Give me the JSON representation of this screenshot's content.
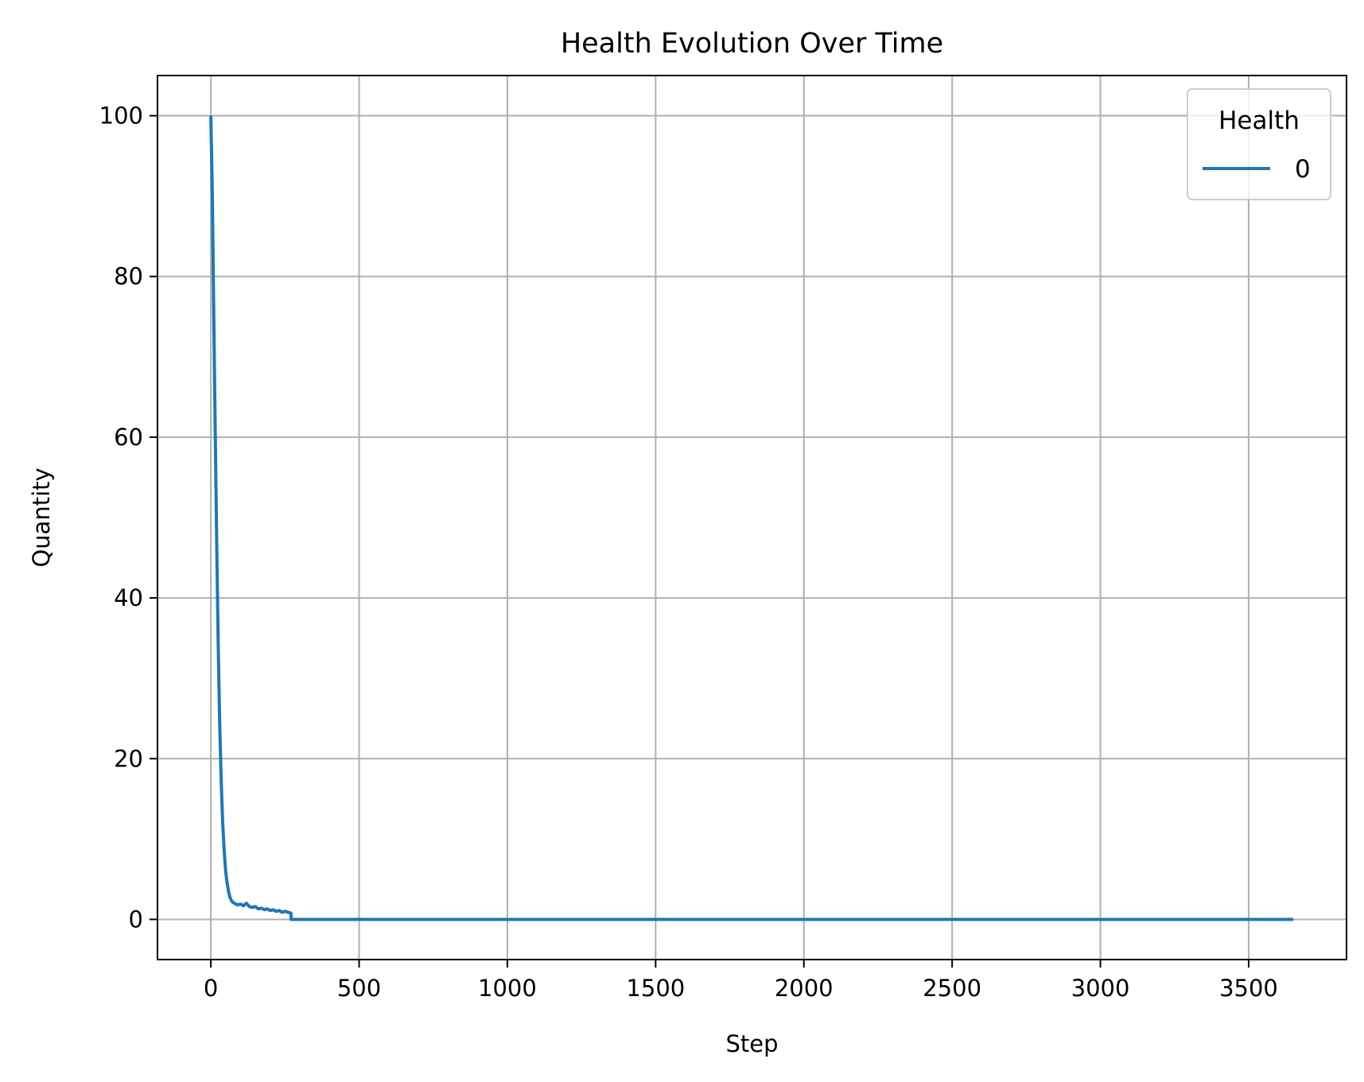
{
  "chart_data": {
    "type": "line",
    "title": "Health Evolution Over Time",
    "xlabel": "Step",
    "ylabel": "Quantity",
    "xlim": [
      -180,
      3830
    ],
    "ylim": [
      -5,
      105
    ],
    "xticks": [
      0,
      500,
      1000,
      1500,
      2000,
      2500,
      3000,
      3500
    ],
    "yticks": [
      0,
      20,
      40,
      60,
      80,
      100
    ],
    "grid": true,
    "legend": {
      "title": "Health",
      "placement": "top-right"
    },
    "colors": {
      "series": "#1f77b4",
      "grid": "#b0b0b0",
      "axes": "#000000"
    },
    "series": [
      {
        "name": "0",
        "x": [
          0,
          5,
          10,
          15,
          20,
          25,
          30,
          35,
          40,
          45,
          50,
          55,
          60,
          65,
          70,
          75,
          80,
          90,
          100,
          110,
          120,
          130,
          140,
          150,
          160,
          170,
          180,
          190,
          200,
          210,
          220,
          230,
          240,
          250,
          260,
          270,
          271,
          280,
          300,
          500,
          1000,
          1500,
          2000,
          2500,
          3000,
          3500,
          3650
        ],
        "y": [
          100,
          90,
          75,
          60,
          46,
          34,
          24,
          17,
          12,
          8.5,
          6,
          4.5,
          3.4,
          2.7,
          2.3,
          2.1,
          2.0,
          1.8,
          1.9,
          1.7,
          2.0,
          1.6,
          1.5,
          1.6,
          1.3,
          1.4,
          1.2,
          1.3,
          1.1,
          1.2,
          1.0,
          1.1,
          0.9,
          1.0,
          0.9,
          0.8,
          0,
          0,
          0,
          0,
          0,
          0,
          0,
          0,
          0,
          0,
          0
        ]
      }
    ]
  }
}
